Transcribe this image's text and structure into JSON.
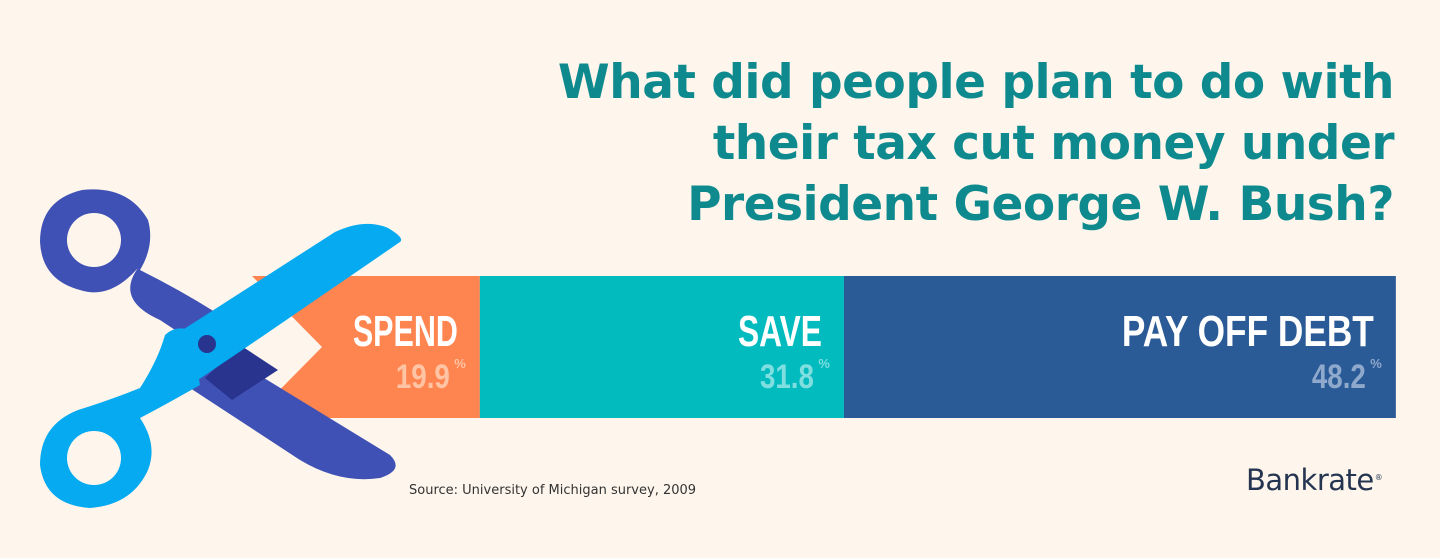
{
  "title_lines": [
    "What did people plan to do with",
    "their tax cut money under",
    "President George W. Bush?"
  ],
  "source": "Source: University of Michigan survey, 2009",
  "logo": {
    "text": "Bankrate",
    "mark": "®"
  },
  "colors": {
    "background": "#FEF6EC",
    "title": "#0E8A8E",
    "spend": "#FF8550",
    "save": "#02BBBE",
    "debt": "#2B5B96",
    "spend_pct": "#FFC4A4",
    "save_pct": "#7FDEDF",
    "debt_pct": "#8FA9CC",
    "scissor_dark": "#3F51B5",
    "scissor_light": "#05AAF0",
    "scissor_pivot": "#29348F"
  },
  "chart_data": {
    "type": "bar",
    "orientation": "horizontal-stacked",
    "title": "What did people plan to do with their tax cut money under President George W. Bush?",
    "categories": [
      "SPEND",
      "SAVE",
      "PAY OFF DEBT"
    ],
    "values": [
      19.9,
      31.8,
      48.2
    ],
    "value_labels": [
      "19.9",
      "31.8",
      "48.2"
    ],
    "unit": "%",
    "xlabel": "",
    "ylabel": "",
    "xlim": [
      0,
      100
    ],
    "grid": false,
    "legend": "none",
    "source": "Source: University of Michigan survey, 2009"
  },
  "icons": {
    "scissors": "scissors-icon"
  }
}
